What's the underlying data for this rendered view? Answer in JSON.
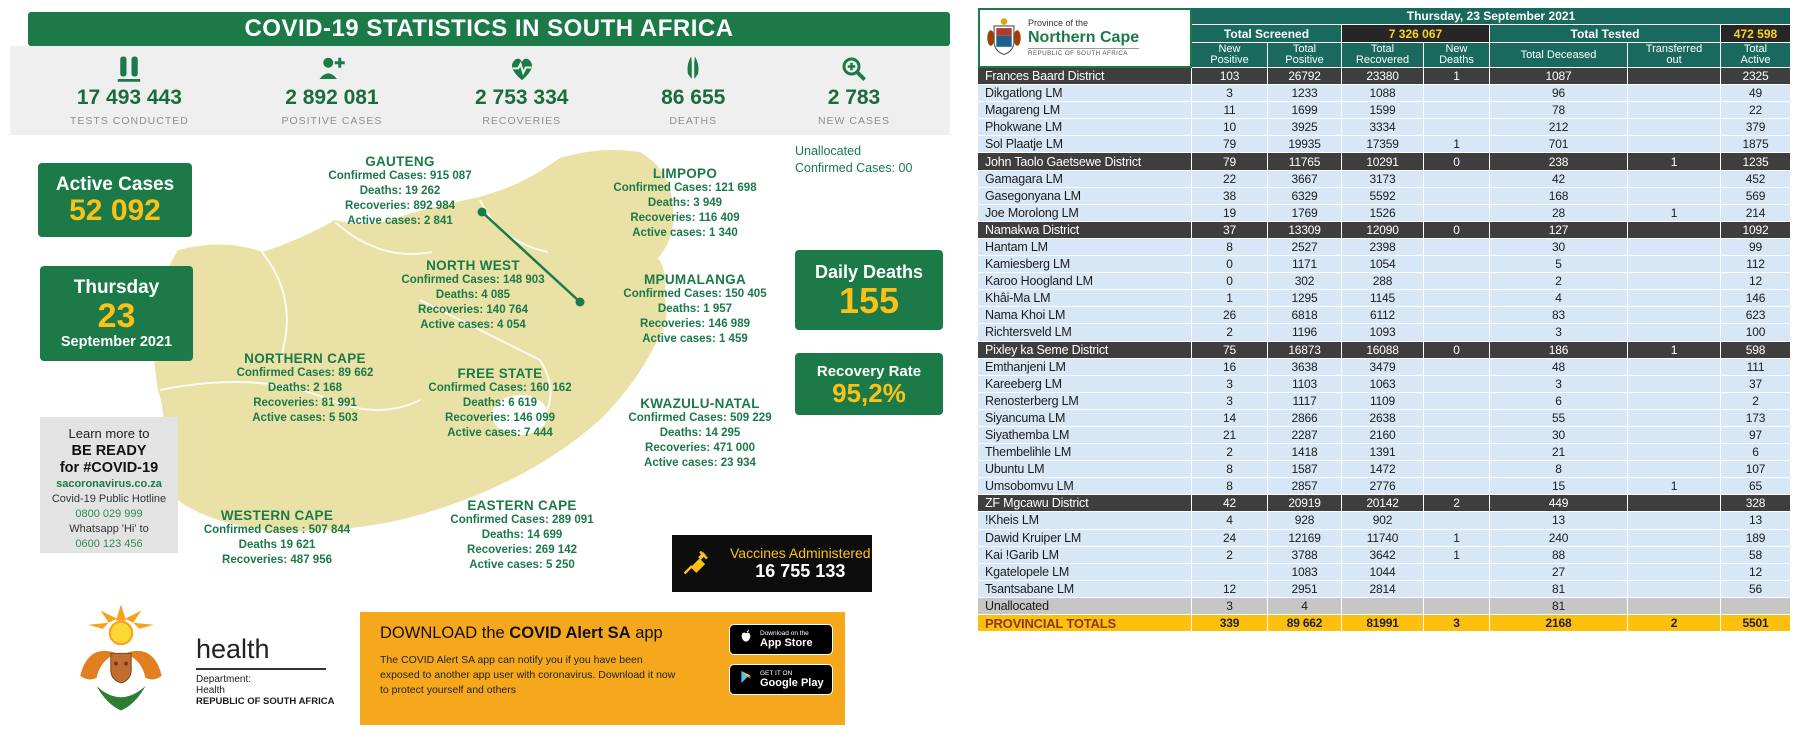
{
  "colors": {
    "green": "#1b7a48",
    "yellow": "#fdc116",
    "teal": "#19695f",
    "map_fill": "#e9e1a6",
    "banner_orange": "#f6a81c",
    "totals_row": "#fec00f"
  },
  "left_panel": {
    "title": "COVID-19 STATISTICS IN SOUTH AFRICA",
    "summary_stats": [
      {
        "icon": "test-tubes-icon",
        "value": "17 493 443",
        "label": "TESTS CONDUCTED"
      },
      {
        "icon": "person-plus-icon",
        "value": "2 892 081",
        "label": "POSITIVE CASES"
      },
      {
        "icon": "heart-pulse-icon",
        "value": "2 753 334",
        "label": "RECOVERIES"
      },
      {
        "icon": "praying-hands-icon",
        "value": "86 655",
        "label": "DEATHS"
      },
      {
        "icon": "magnifier-plus-icon",
        "value": "2 783",
        "label": "NEW CASES"
      }
    ],
    "active_cases": {
      "label": "Active Cases",
      "value": "52 092"
    },
    "date_card": {
      "weekday": "Thursday",
      "day": "23",
      "month_year": "September 2021"
    },
    "info_box": {
      "line1": "Learn more to",
      "line2": "BE READY",
      "line3": "for #COVID-19",
      "link": "sacoronavirus.co.za",
      "hotline_label": "Covid-19 Public Hotline",
      "hotline_number": "0800 029 999",
      "whatsapp_label": "Whatsapp 'Hi' to",
      "whatsapp_number": "0600 123 456"
    },
    "provinces": [
      {
        "name": "GAUTENG",
        "lines": [
          "Confirmed Cases: 915 087",
          "Deaths: 19 262",
          "Recoveries: 892 984",
          "Active cases: 2 841"
        ]
      },
      {
        "name": "LIMPOPO",
        "lines": [
          "Confirmed Cases: 121 698",
          "Deaths: 3 949",
          "Recoveries: 116 409",
          "Active cases: 1 340"
        ]
      },
      {
        "name": "NORTH WEST",
        "lines": [
          "Confirmed Cases: 148 903",
          "Deaths: 4 085",
          "Recoveries: 140 764",
          "Active cases: 4 054"
        ]
      },
      {
        "name": "MPUMALANGA",
        "lines": [
          "Confirmed Cases: 150 405",
          "Deaths: 1 957",
          "Recoveries: 146 989",
          "Active cases: 1 459"
        ]
      },
      {
        "name": "NORTHERN CAPE",
        "lines": [
          "Confirmed Cases: 89 662",
          "Deaths: 2 168",
          "Recoveries: 81 991",
          "Active cases: 5 503"
        ]
      },
      {
        "name": "FREE STATE",
        "lines": [
          "Confirmed Cases: 160 162",
          "Deaths: 6 619",
          "Recoveries: 146 099",
          "Active cases: 7 444"
        ]
      },
      {
        "name": "KWAZULU-NATAL",
        "lines": [
          "Confirmed Cases: 509 229",
          "Deaths: 14 295",
          "Recoveries: 471 000",
          "Active cases: 23 934"
        ]
      },
      {
        "name": "WESTERN CAPE",
        "lines": [
          "Confirmed Cases : 507 844",
          "Deaths 19 621",
          "Recoveries: 487 956"
        ]
      },
      {
        "name": "EASTERN CAPE",
        "lines": [
          "Confirmed Cases: 289 091",
          "Deaths: 14 699",
          "Recoveries: 269 142",
          "Active cases: 5 250"
        ]
      }
    ],
    "unallocated_note": {
      "line1": "Unallocated",
      "line2": "Confirmed Cases: 00"
    },
    "daily_deaths": {
      "label": "Daily Deaths",
      "value": "155"
    },
    "recovery_rate": {
      "label": "Recovery Rate",
      "value": "95,2%"
    },
    "vaccines": {
      "label": "Vaccines Administered",
      "value": "16 755 133"
    },
    "app_banner": {
      "heading_prefix": "DOWNLOAD the ",
      "heading_bold": "COVID Alert SA",
      "heading_suffix": " app",
      "body": "The COVID Alert SA app can notify you if you have been exposed to another app user with coronavirus. Download it now to protect yourself and others",
      "app_store": {
        "line1": "Download on the",
        "line2": "App Store"
      },
      "google_play": {
        "line1": "GET IT ON",
        "line2": "Google Play"
      }
    },
    "dept": {
      "wordmark": "health",
      "line1": "Department:",
      "line2": "Health",
      "line3": "REPUBLIC OF SOUTH AFRICA"
    }
  },
  "table": {
    "logo": {
      "line1": "Province of the",
      "line2": "Northern Cape",
      "line3": "REPUBLIC OF SOUTH AFRICA"
    },
    "date_header": "Thursday, 23 September 2021",
    "screened_label": "Total Screened",
    "screened_value": "7 326 067",
    "tested_label": "Total Tested",
    "tested_value": "472 598",
    "columns": [
      "New\nPositive",
      "Total\nPositive",
      "Total\nRecovered",
      "New\nDeaths",
      "Total Deceased",
      "Transferred\nout",
      "Total\nActive"
    ],
    "rows": [
      {
        "name": "Frances Baard District",
        "style": "d",
        "values": [
          "103",
          "26792",
          "23380",
          "1",
          "1087",
          "",
          "2325"
        ]
      },
      {
        "name": "Dikgatlong LM",
        "style": "l",
        "values": [
          "3",
          "1233",
          "1088",
          "",
          "96",
          "",
          "49"
        ]
      },
      {
        "name": "Magareng LM",
        "style": "l",
        "values": [
          "11",
          "1699",
          "1599",
          "",
          "78",
          "",
          "22"
        ]
      },
      {
        "name": "Phokwane LM",
        "style": "l",
        "values": [
          "10",
          "3925",
          "3334",
          "",
          "212",
          "",
          "379"
        ]
      },
      {
        "name": "Sol Plaatje LM",
        "style": "l",
        "values": [
          "79",
          "19935",
          "17359",
          "1",
          "701",
          "",
          "1875"
        ]
      },
      {
        "name": "John Taolo Gaetsewe District",
        "style": "d",
        "values": [
          "79",
          "11765",
          "10291",
          "0",
          "238",
          "1",
          "1235"
        ]
      },
      {
        "name": "Gamagara LM",
        "style": "l",
        "values": [
          "22",
          "3667",
          "3173",
          "",
          "42",
          "",
          "452"
        ]
      },
      {
        "name": "Gasegonyana LM",
        "style": "l",
        "values": [
          "38",
          "6329",
          "5592",
          "",
          "168",
          "",
          "569"
        ]
      },
      {
        "name": "Joe Morolong LM",
        "style": "l",
        "values": [
          "19",
          "1769",
          "1526",
          "",
          "28",
          "1",
          "214"
        ]
      },
      {
        "name": "Namakwa District",
        "style": "d",
        "values": [
          "37",
          "13309",
          "12090",
          "0",
          "127",
          "",
          "1092"
        ]
      },
      {
        "name": "Hantam LM",
        "style": "l",
        "values": [
          "8",
          "2527",
          "2398",
          "",
          "30",
          "",
          "99"
        ]
      },
      {
        "name": "Kamiesberg LM",
        "style": "l",
        "values": [
          "0",
          "1171",
          "1054",
          "",
          "5",
          "",
          "112"
        ]
      },
      {
        "name": "Karoo Hoogland LM",
        "style": "l",
        "values": [
          "0",
          "302",
          "288",
          "",
          "2",
          "",
          "12"
        ]
      },
      {
        "name": "Khâi-Ma LM",
        "style": "l",
        "values": [
          "1",
          "1295",
          "1145",
          "",
          "4",
          "",
          "146"
        ]
      },
      {
        "name": "Nama Khoi LM",
        "style": "l",
        "values": [
          "26",
          "6818",
          "6112",
          "",
          "83",
          "",
          "623"
        ]
      },
      {
        "name": "Richtersveld LM",
        "style": "l",
        "values": [
          "2",
          "1196",
          "1093",
          "",
          "3",
          "",
          "100"
        ]
      },
      {
        "name": "Pixley ka Seme District",
        "style": "d",
        "values": [
          "75",
          "16873",
          "16088",
          "0",
          "186",
          "1",
          "598"
        ]
      },
      {
        "name": "Emthanjeni LM",
        "style": "l",
        "values": [
          "16",
          "3638",
          "3479",
          "",
          "48",
          "",
          "111"
        ]
      },
      {
        "name": "Kareeberg LM",
        "style": "l",
        "values": [
          "3",
          "1103",
          "1063",
          "",
          "3",
          "",
          "37"
        ]
      },
      {
        "name": "Renosterberg LM",
        "style": "l",
        "values": [
          "3",
          "1117",
          "1109",
          "",
          "6",
          "",
          "2"
        ]
      },
      {
        "name": "Siyancuma LM",
        "style": "l",
        "values": [
          "14",
          "2866",
          "2638",
          "",
          "55",
          "",
          "173"
        ]
      },
      {
        "name": "Siyathemba LM",
        "style": "l",
        "values": [
          "21",
          "2287",
          "2160",
          "",
          "30",
          "",
          "97"
        ]
      },
      {
        "name": "Thembelihle LM",
        "style": "l",
        "values": [
          "2",
          "1418",
          "1391",
          "",
          "21",
          "",
          "6"
        ]
      },
      {
        "name": "Ubuntu LM",
        "style": "l",
        "values": [
          "8",
          "1587",
          "1472",
          "",
          "8",
          "",
          "107"
        ]
      },
      {
        "name": "Umsobomvu LM",
        "style": "l",
        "values": [
          "8",
          "2857",
          "2776",
          "",
          "15",
          "1",
          "65"
        ]
      },
      {
        "name": "ZF Mgcawu District",
        "style": "d",
        "values": [
          "42",
          "20919",
          "20142",
          "2",
          "449",
          "",
          "328"
        ]
      },
      {
        "name": "!Kheis LM",
        "style": "l",
        "values": [
          "4",
          "928",
          "902",
          "",
          "13",
          "",
          "13"
        ]
      },
      {
        "name": "Dawid Kruiper LM",
        "style": "l",
        "values": [
          "24",
          "12169",
          "11740",
          "1",
          "240",
          "",
          "189"
        ]
      },
      {
        "name": "Kai !Garib LM",
        "style": "l",
        "values": [
          "2",
          "3788",
          "3642",
          "1",
          "88",
          "",
          "58"
        ]
      },
      {
        "name": "Kgatelopele LM",
        "style": "l",
        "values": [
          "",
          "1083",
          "1044",
          "",
          "27",
          "",
          "12"
        ]
      },
      {
        "name": "Tsantsabane LM",
        "style": "l",
        "values": [
          "12",
          "2951",
          "2814",
          "",
          "81",
          "",
          "56"
        ]
      },
      {
        "name": "Unallocated",
        "style": "u",
        "values": [
          "3",
          "4",
          "",
          "",
          "81",
          "",
          ""
        ]
      },
      {
        "name": "PROVINCIAL TOTALS",
        "style": "t",
        "values": [
          "339",
          "89 662",
          "81991",
          "3",
          "2168",
          "2",
          "5501"
        ]
      }
    ]
  }
}
